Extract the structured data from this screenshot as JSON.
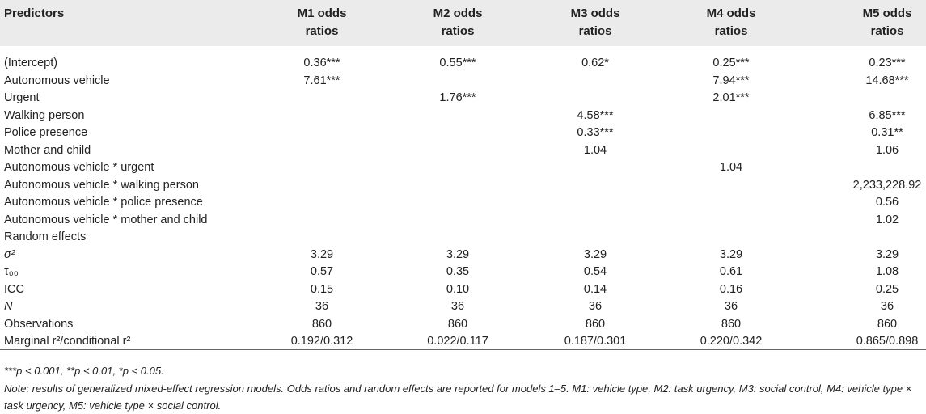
{
  "table": {
    "header": [
      "Predictors",
      "M1 odds ratios",
      "M2 odds ratios",
      "M3 odds ratios",
      "M4 odds ratios",
      "M5 odds ratios"
    ],
    "rows": [
      [
        "(Intercept)",
        "0.36***",
        "0.55***",
        "0.62*",
        "0.25***",
        "0.23***"
      ],
      [
        "Autonomous vehicle",
        "7.61***",
        null,
        null,
        "7.94***",
        "14.68***"
      ],
      [
        "Urgent",
        null,
        "1.76***",
        null,
        "2.01***",
        null
      ],
      [
        "Walking person",
        null,
        null,
        "4.58***",
        null,
        "6.85***"
      ],
      [
        "Police presence",
        null,
        null,
        "0.33***",
        null,
        "0.31**"
      ],
      [
        "Mother and child",
        null,
        null,
        "1.04",
        null,
        "1.06"
      ],
      [
        "Autonomous vehicle * urgent",
        null,
        null,
        null,
        "1.04",
        null
      ],
      [
        "Autonomous vehicle * walking person",
        null,
        null,
        null,
        null,
        "2,233,228.92"
      ],
      [
        "Autonomous vehicle * police presence",
        null,
        null,
        null,
        null,
        "0.56"
      ],
      [
        "Autonomous vehicle * mother and child",
        null,
        null,
        null,
        null,
        "1.02"
      ],
      [
        "Random effects",
        null,
        null,
        null,
        null,
        null
      ],
      [
        "σ²",
        "3.29",
        "3.29",
        "3.29",
        "3.29",
        "3.29"
      ],
      [
        "τ₀₀",
        "0.57",
        "0.35",
        "0.54",
        "0.61",
        "1.08"
      ],
      [
        "ICC",
        "0.15",
        "0.10",
        "0.14",
        "0.16",
        "0.25"
      ],
      [
        "N",
        "36",
        "36",
        "36",
        "36",
        "36"
      ],
      [
        "Observations",
        "860",
        "860",
        "860",
        "860",
        "860"
      ],
      [
        "Marginal r²/conditional r²",
        "0.192/0.312",
        "0.022/0.117",
        "0.187/0.301",
        "0.220/0.342",
        "0.865/0.898"
      ]
    ]
  },
  "notes": [
    "***p < 0.001, **p < 0.01, *p < 0.05.",
    "Note: results of generalized mixed-effect regression models. Odds ratios and random effects are reported for models 1–5. M1: vehicle type, M2: task urgency, M3: social control, M4: vehicle type × task urgency, M5: vehicle type × social control."
  ]
}
